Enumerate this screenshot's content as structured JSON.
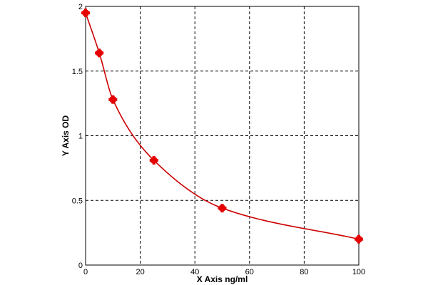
{
  "chart_data": {
    "type": "scatter",
    "title": "",
    "xlabel": "X Axis ng/ml",
    "ylabel": "Y Axis OD",
    "xlim": [
      0,
      100
    ],
    "ylim": [
      0,
      2
    ],
    "x_ticks": [
      0,
      20,
      40,
      60,
      80,
      100
    ],
    "y_ticks": [
      0,
      0.5,
      1,
      1.5,
      2
    ],
    "x_tick_labels": [
      "0",
      "20",
      "40",
      "60",
      "80",
      "100"
    ],
    "y_tick_labels": [
      "0",
      "0.5",
      "1",
      "1.5",
      "2"
    ],
    "grid": true,
    "grid_style": "dashed",
    "points": [
      {
        "x": 0,
        "y": 1.95
      },
      {
        "x": 5,
        "y": 1.64
      },
      {
        "x": 10,
        "y": 1.28
      },
      {
        "x": 25,
        "y": 0.81
      },
      {
        "x": 50,
        "y": 0.44
      },
      {
        "x": 100,
        "y": 0.2
      }
    ],
    "fit_curve": true,
    "colors": {
      "series": "#cc0000",
      "marker": "#e60000",
      "grid": "#000000",
      "axis": "#000000"
    }
  }
}
